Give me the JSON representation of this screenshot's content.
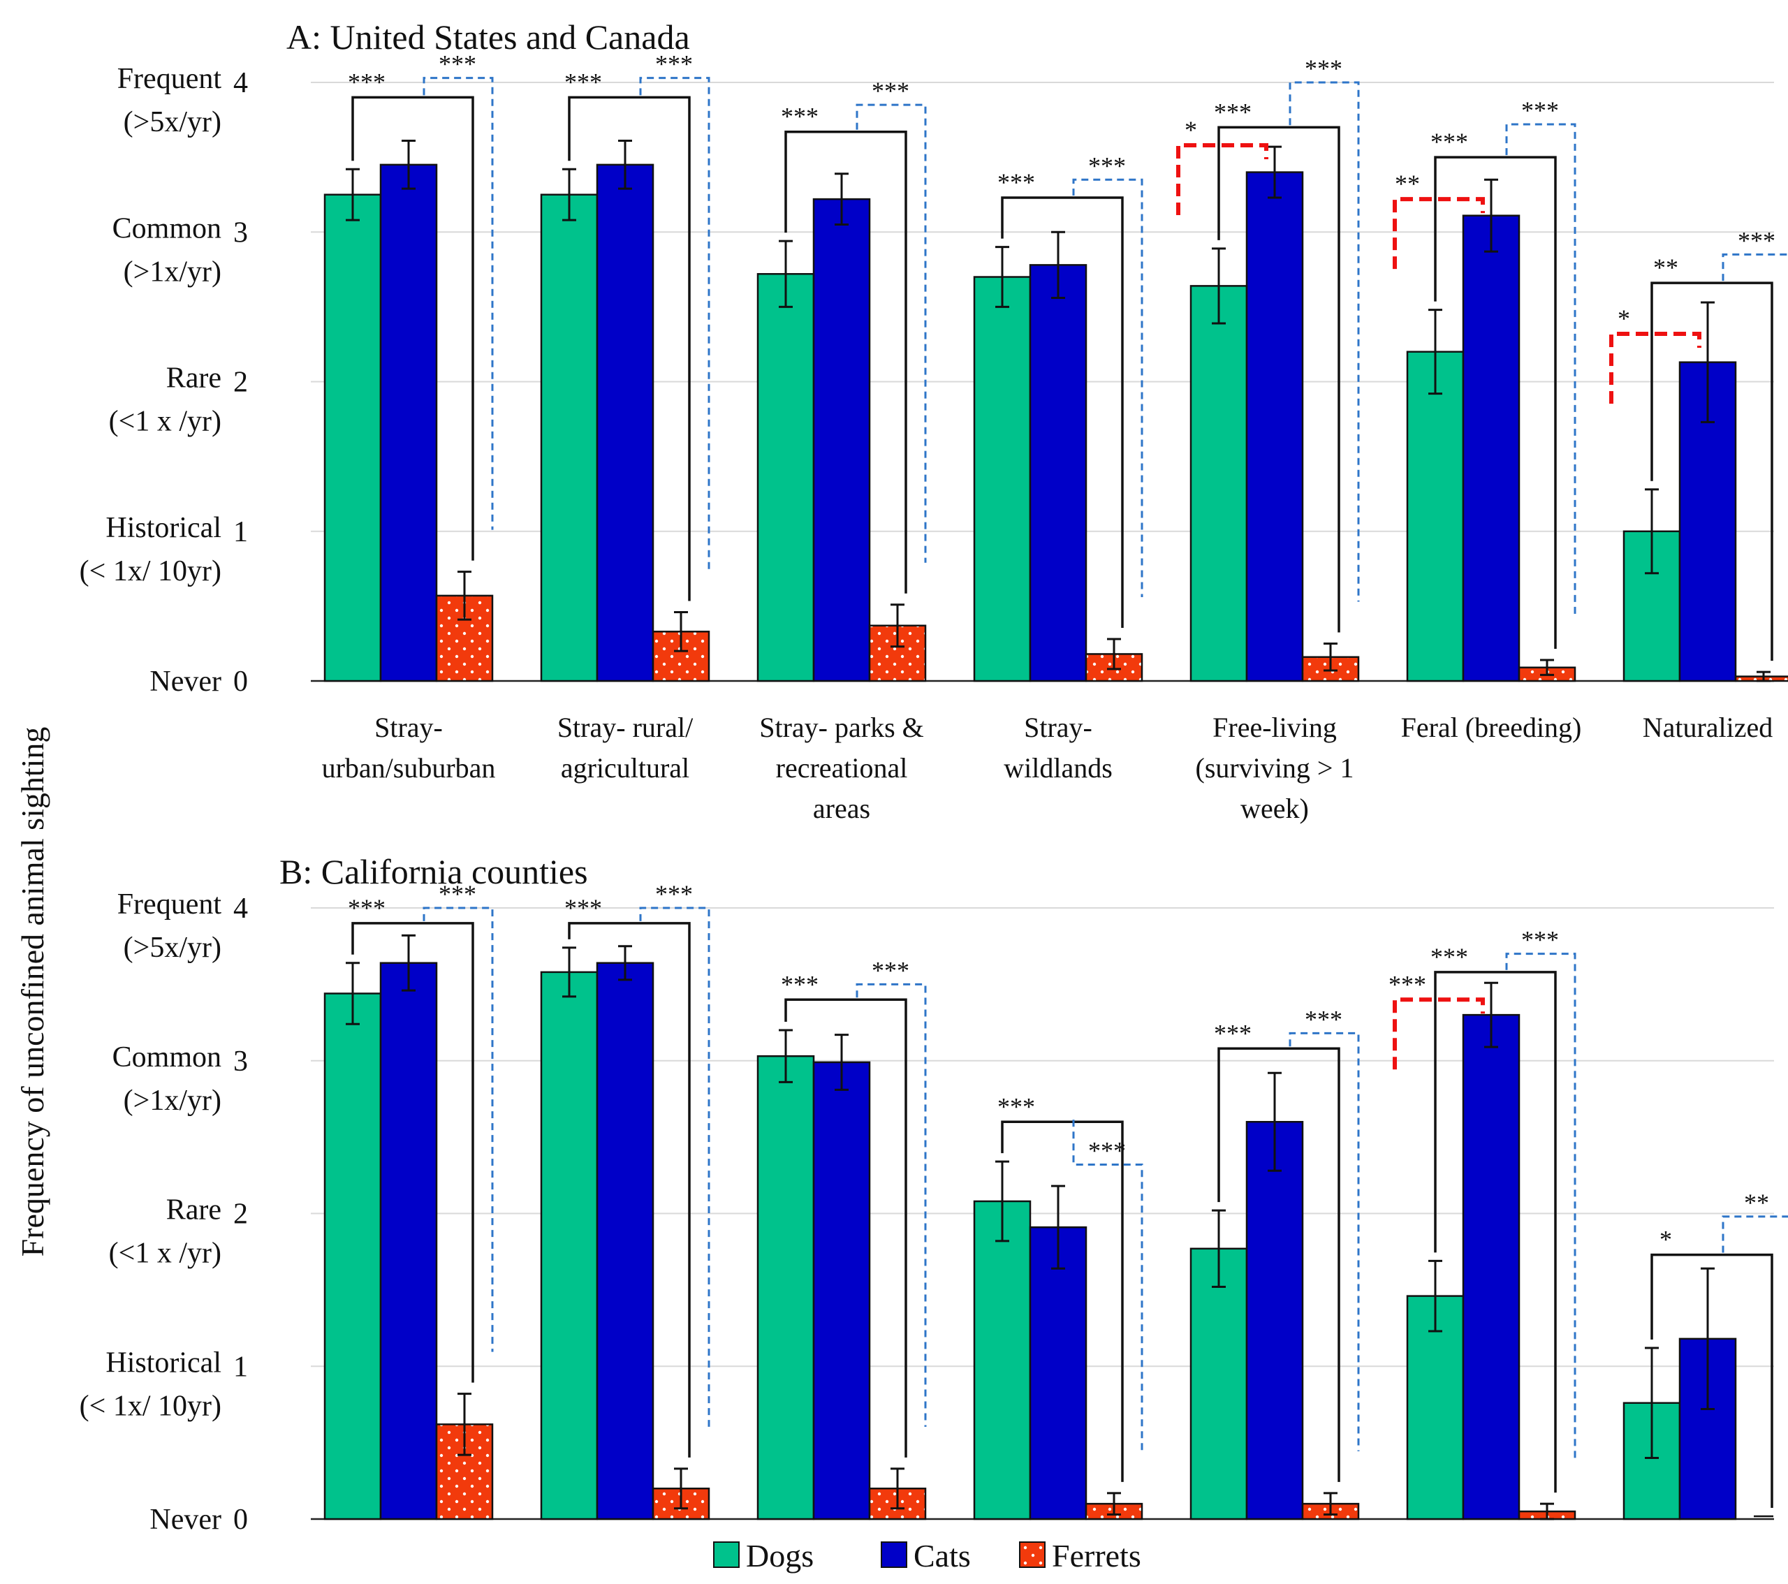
{
  "chart_data": [
    {
      "type": "bar",
      "title": "A: United States and Canada",
      "ylabel": "Frequency of unconfined animal sighting",
      "ylim": [
        0,
        4
      ],
      "y_ticks": [
        {
          "value": 0,
          "number": "0",
          "category": "Never",
          "sub": ""
        },
        {
          "value": 1,
          "number": "1",
          "category": "Historical",
          "sub": "(< 1x/ 10yr)"
        },
        {
          "value": 2,
          "number": "2",
          "category": "Rare",
          "sub": "(<1 x /yr)"
        },
        {
          "value": 3,
          "number": "3",
          "category": "Common",
          "sub": "(>1x/yr)"
        },
        {
          "value": 4,
          "number": "4",
          "category": "Frequent",
          "sub": "(>5x/yr)"
        }
      ],
      "categories": [
        [
          "Stray-",
          "urban/suburban"
        ],
        [
          "Stray- rural/",
          "agricultural"
        ],
        [
          "Stray- parks &",
          "recreational",
          "areas"
        ],
        [
          "Stray-",
          "wildlands"
        ],
        [
          "Free-living",
          "(surviving > 1",
          "week)"
        ],
        [
          "Feral (breeding)"
        ],
        [
          "Naturalized"
        ]
      ],
      "series": [
        {
          "name": "Dogs",
          "color": "#00c28c",
          "values": [
            3.25,
            3.25,
            2.72,
            2.7,
            2.64,
            2.2,
            1.0
          ],
          "errors": [
            0.17,
            0.17,
            0.22,
            0.2,
            0.25,
            0.28,
            0.28
          ]
        },
        {
          "name": "Cats",
          "color": "#0000c8",
          "values": [
            3.45,
            3.45,
            3.22,
            2.78,
            3.4,
            3.11,
            2.13
          ],
          "errors": [
            0.16,
            0.16,
            0.17,
            0.22,
            0.17,
            0.24,
            0.4
          ]
        },
        {
          "name": "Ferrets",
          "color": "#f23a0c",
          "values": [
            0.57,
            0.33,
            0.37,
            0.18,
            0.16,
            0.09,
            0.03
          ],
          "errors": [
            0.16,
            0.13,
            0.14,
            0.1,
            0.09,
            0.05,
            0.03
          ]
        }
      ],
      "significance": [
        {
          "category": 0,
          "dog_cat": "",
          "dog_ferret": "***",
          "cat_ferret": "***",
          "dog_ferret_top": 3.9,
          "cat_ferret_top": 4.03
        },
        {
          "category": 1,
          "dog_cat": "",
          "dog_ferret": "***",
          "cat_ferret": "***",
          "dog_ferret_top": 3.9,
          "cat_ferret_top": 4.03
        },
        {
          "category": 2,
          "dog_cat": "",
          "dog_ferret": "***",
          "cat_ferret": "***",
          "dog_ferret_top": 3.67,
          "cat_ferret_top": 3.85
        },
        {
          "category": 3,
          "dog_cat": "",
          "dog_ferret": "***",
          "cat_ferret": "***",
          "dog_ferret_top": 3.23,
          "cat_ferret_top": 3.35
        },
        {
          "category": 4,
          "dog_cat": "*",
          "dog_ferret": "***",
          "cat_ferret": "***",
          "dog_ferret_top": 3.7,
          "cat_ferret_top": 4.0,
          "dog_cat_top": 3.58
        },
        {
          "category": 5,
          "dog_cat": "**",
          "dog_ferret": "***",
          "cat_ferret": "***",
          "dog_ferret_top": 3.5,
          "cat_ferret_top": 3.72,
          "dog_cat_top": 3.22
        },
        {
          "category": 6,
          "dog_cat": "*",
          "dog_ferret": "**",
          "cat_ferret": "***",
          "dog_ferret_top": 2.66,
          "cat_ferret_top": 2.85,
          "dog_cat_top": 2.32
        }
      ]
    },
    {
      "type": "bar",
      "title": "B: California counties",
      "ylabel": "Frequency of unconfined animal sighting",
      "ylim": [
        0,
        4
      ],
      "y_ticks": [
        {
          "value": 0,
          "number": "0",
          "category": "Never",
          "sub": ""
        },
        {
          "value": 1,
          "number": "1",
          "category": "Historical",
          "sub": "(< 1x/ 10yr)"
        },
        {
          "value": 2,
          "number": "2",
          "category": "Rare",
          "sub": "(<1 x /yr)"
        },
        {
          "value": 3,
          "number": "3",
          "category": "Common",
          "sub": "(>1x/yr)"
        },
        {
          "value": 4,
          "number": "4",
          "category": "Frequent",
          "sub": "(>5x/yr)"
        }
      ],
      "series": [
        {
          "name": "Dogs",
          "color": "#00c28c",
          "values": [
            3.44,
            3.58,
            3.03,
            2.08,
            1.77,
            1.46,
            0.76
          ],
          "errors": [
            0.2,
            0.16,
            0.17,
            0.26,
            0.25,
            0.23,
            0.36
          ]
        },
        {
          "name": "Cats",
          "color": "#0000c8",
          "values": [
            3.64,
            3.64,
            2.99,
            1.91,
            2.6,
            3.3,
            1.18
          ],
          "errors": [
            0.18,
            0.11,
            0.18,
            0.27,
            0.32,
            0.21,
            0.46
          ]
        },
        {
          "name": "Ferrets",
          "color": "#f23a0c",
          "values": [
            0.62,
            0.2,
            0.2,
            0.1,
            0.1,
            0.05,
            0.0
          ],
          "errors": [
            0.2,
            0.13,
            0.13,
            0.07,
            0.07,
            0.05,
            0.0
          ]
        }
      ],
      "significance": [
        {
          "category": 0,
          "dog_cat": "",
          "dog_ferret": "***",
          "cat_ferret": "***",
          "dog_ferret_top": 3.9,
          "cat_ferret_top": 4.0
        },
        {
          "category": 1,
          "dog_cat": "",
          "dog_ferret": "***",
          "cat_ferret": "***",
          "dog_ferret_top": 3.9,
          "cat_ferret_top": 4.0
        },
        {
          "category": 2,
          "dog_cat": "",
          "dog_ferret": "***",
          "cat_ferret": "***",
          "dog_ferret_top": 3.4,
          "cat_ferret_top": 3.5
        },
        {
          "category": 3,
          "dog_cat": "",
          "dog_ferret": "***",
          "cat_ferret": "***",
          "dog_ferret_top": 2.6,
          "cat_ferret_top": 2.32
        },
        {
          "category": 4,
          "dog_cat": "",
          "dog_ferret": "***",
          "cat_ferret": "***",
          "dog_ferret_top": 3.08,
          "cat_ferret_top": 3.18
        },
        {
          "category": 5,
          "dog_cat": "***",
          "dog_ferret": "***",
          "cat_ferret": "***",
          "dog_ferret_top": 3.58,
          "cat_ferret_top": 3.7,
          "dog_cat_top": 3.4
        },
        {
          "category": 6,
          "dog_cat": "",
          "dog_ferret": "*",
          "cat_ferret": "**",
          "dog_ferret_top": 1.73,
          "cat_ferret_top": 1.98
        }
      ]
    }
  ],
  "legend": [
    {
      "label": "Dogs",
      "color": "#00c28c"
    },
    {
      "label": "Cats",
      "color": "#0000c8"
    },
    {
      "label": "Ferrets",
      "color": "#f23a0c"
    }
  ]
}
